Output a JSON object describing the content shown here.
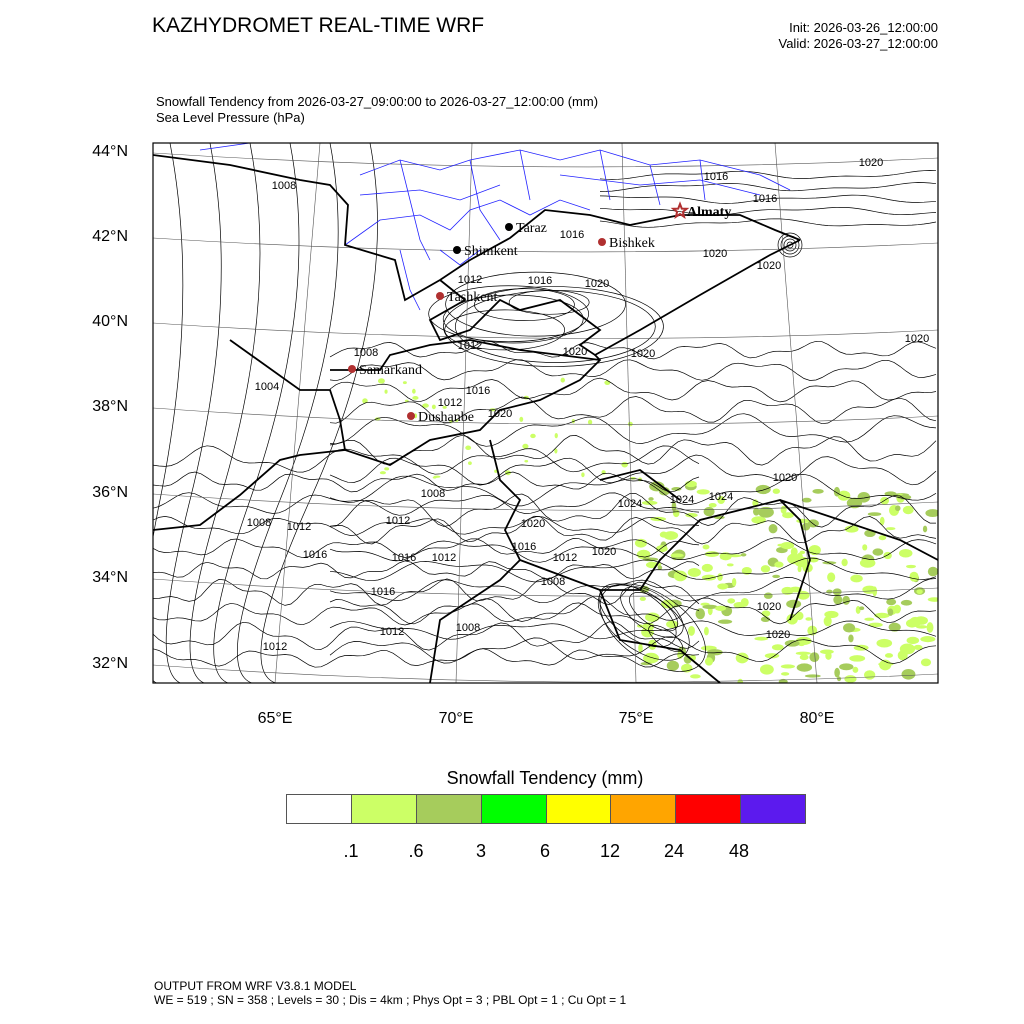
{
  "header": {
    "title": "KAZHYDROMET REAL-TIME WRF",
    "init": "Init: 2026-03-26_12:00:00",
    "valid": "Valid: 2026-03-27_12:00:00"
  },
  "subtitle": {
    "line1": "Snowfall Tendency from 2026-03-27_09:00:00 to 2026-03-27_12:00:00   (mm)",
    "line2": "Sea Level Pressure   (hPa)"
  },
  "map": {
    "lat_labels": [
      "44°N",
      "42°N",
      "40°N",
      "38°N",
      "36°N",
      "34°N",
      "32°N"
    ],
    "lon_labels": [
      "65°E",
      "70°E",
      "75°E",
      "80°E"
    ],
    "cities": [
      {
        "name": "Almaty",
        "marker": "star",
        "color": "#b03030"
      },
      {
        "name": "Taraz",
        "marker": "dot",
        "color": "#000000"
      },
      {
        "name": "Shimkent",
        "marker": "dot",
        "color": "#000000"
      },
      {
        "name": "Bishkek",
        "marker": "dot",
        "color": "#b03030"
      },
      {
        "name": "Tashkent",
        "marker": "dot",
        "color": "#b03030"
      },
      {
        "name": "Samarkand",
        "marker": "dot",
        "color": "#b03030"
      },
      {
        "name": "Dushanbe",
        "marker": "dot",
        "color": "#b03030"
      }
    ],
    "contour_labels": [
      "1008",
      "1016",
      "1016",
      "1020",
      "1016",
      "1020",
      "1020",
      "1016",
      "1020",
      "1012",
      "1020",
      "1008",
      "1012",
      "1020",
      "1020",
      "1004",
      "1016",
      "1012",
      "1020",
      "1020",
      "1008",
      "1024",
      "1024",
      "1024",
      "1008",
      "1012",
      "1012",
      "1020",
      "1016",
      "1016",
      "1012",
      "1016",
      "1012",
      "1020",
      "1008",
      "1016",
      "1012",
      "1008",
      "1012",
      "1020",
      "1020"
    ]
  },
  "colorbar": {
    "title": "Snowfall Tendency  (mm)",
    "colors": [
      "#ffffff",
      "#ccff66",
      "#a6cc5c",
      "#00ff00",
      "#ffff00",
      "#ffa500",
      "#ff0000",
      "#5c1aee"
    ],
    "labels": [
      ".1",
      ".6",
      "3",
      "6",
      "12",
      "24",
      "48"
    ]
  },
  "footer": {
    "line1": "OUTPUT FROM WRF V3.8.1 MODEL",
    "line2": "WE = 519 ; SN = 358 ; Levels = 30 ; Dis = 4km ; Phys Opt = 3 ; PBL Opt = 1 ; Cu Opt = 1"
  }
}
